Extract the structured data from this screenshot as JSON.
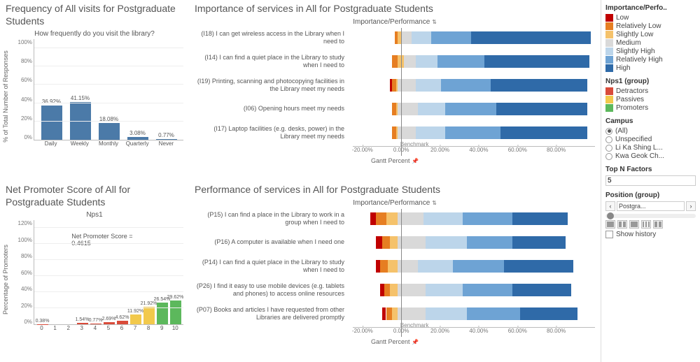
{
  "palette": {
    "low": "#c00000",
    "rel_low": "#e67e22",
    "slightly_low": "#f5c26b",
    "medium": "#d9d9d9",
    "slightly_high": "#bcd5ea",
    "rel_high": "#6ea3d4",
    "high": "#2f6aa8",
    "detractors": "#d94b3a",
    "passives": "#f2c94c",
    "promoters": "#5cb85c",
    "freq_bar": "#4b7aa8",
    "grid": "#e0e0e0",
    "axis": "#bbbbbb",
    "bg": "#ffffff"
  },
  "legend_importance": {
    "title": "Importance/Perfo..",
    "items": [
      "Low",
      "Relatively Low",
      "Slightly Low",
      "Medium",
      "Slightly High",
      "Relatively High",
      "High"
    ],
    "colors": [
      "#c00000",
      "#e67e22",
      "#f5c26b",
      "#d9d9d9",
      "#bcd5ea",
      "#6ea3d4",
      "#2f6aa8"
    ]
  },
  "legend_nps": {
    "title": "Nps1 (group)",
    "items": [
      "Detractors",
      "Passives",
      "Promoters"
    ],
    "colors": [
      "#d94b3a",
      "#f2c94c",
      "#5cb85c"
    ]
  },
  "campus": {
    "title": "Campus",
    "options": [
      "(All)",
      "Unspecified",
      "Li Ka Shing L...",
      "Kwa Geok Ch..."
    ],
    "selected_index": 0
  },
  "topn": {
    "title": "Top N Factors",
    "value": "5"
  },
  "position": {
    "title": "Position (group)",
    "value": "Postgra...",
    "show_history_label": "Show history"
  },
  "freq": {
    "title": "Frequency of All visits for Postgraduate Students",
    "subtitle": "How frequently do you visit the library?",
    "y_label": "% of Total Number of Responses",
    "y_max": 110,
    "y_ticks": [
      "0%",
      "20%",
      "40%",
      "60%",
      "80%",
      "100%"
    ],
    "categories": [
      "Daily",
      "Weekly",
      "Monthly",
      "Quarterly",
      "Never"
    ],
    "values": [
      36.92,
      41.15,
      18.08,
      3.08,
      0.77
    ],
    "value_labels": [
      "36.92%",
      "41.15%",
      "18.08%",
      "3.08%",
      "0.77%"
    ]
  },
  "nps": {
    "title": "Net Promoter Score of All for Postgraduate Students",
    "subtitle": "Nps1",
    "y_label": "Percentage of Promoters",
    "note": "Net Promoter Score = 0.4615",
    "y_max": 130,
    "y_ticks": [
      "0%",
      "20%",
      "40%",
      "60%",
      "80%",
      "100%",
      "120%"
    ],
    "categories": [
      "0",
      "1",
      "2",
      "3",
      "4",
      "5",
      "6",
      "7",
      "8",
      "9",
      "10"
    ],
    "values": [
      0.38,
      0,
      0,
      1.54,
      0.77,
      2.69,
      4.62,
      11.92,
      21.92,
      26.54,
      29.62
    ],
    "value_labels": [
      "0.38%",
      "",
      "",
      "1.54%",
      "0.77%",
      "2.69%",
      "4.62%",
      "11.92%",
      "21.92%",
      "26.54%",
      "29.62%"
    ],
    "bar_colors": [
      "#d94b3a",
      "#d94b3a",
      "#d94b3a",
      "#d94b3a",
      "#d94b3a",
      "#d94b3a",
      "#d94b3a",
      "#f2c94c",
      "#f2c94c",
      "#5cb85c",
      "#5cb85c"
    ]
  },
  "importance": {
    "title": "Importance of services in All for Postgraduate Students",
    "header": "Importance/Performance",
    "x_label": "Gantt Percent",
    "x_min": -25,
    "x_max": 100,
    "x_ticks": [
      -20,
      0,
      20,
      40,
      60,
      80
    ],
    "x_tick_labels": [
      "-20.00%",
      "0.00%",
      "20.00%",
      "40.00%",
      "60.00%",
      "80.00%"
    ],
    "benchmark_label": "Benchmark",
    "rows": [
      {
        "label": "(I18) I can get wireless access in the Library when I need to",
        "segs": [
          {
            "c": "#e67e22",
            "a": -1.5,
            "b": 0
          },
          {
            "c": "#f5c26b",
            "a": 0,
            "b": 2
          },
          {
            "c": "#d9d9d9",
            "a": 2,
            "b": 7
          },
          {
            "c": "#bcd5ea",
            "a": 7,
            "b": 17
          },
          {
            "c": "#6ea3d4",
            "a": 17,
            "b": 37
          },
          {
            "c": "#2f6aa8",
            "a": 37,
            "b": 98
          }
        ]
      },
      {
        "label": "(I14) I can find a quiet place in the Library to study when I need to",
        "segs": [
          {
            "c": "#e67e22",
            "a": -3,
            "b": 0
          },
          {
            "c": "#f5c26b",
            "a": 0,
            "b": 3
          },
          {
            "c": "#d9d9d9",
            "a": 3,
            "b": 9
          },
          {
            "c": "#bcd5ea",
            "a": 9,
            "b": 20
          },
          {
            "c": "#6ea3d4",
            "a": 20,
            "b": 44
          },
          {
            "c": "#2f6aa8",
            "a": 44,
            "b": 97
          }
        ]
      },
      {
        "label": "(I19) Printing, scanning and photocopying facilities in the Library meet my needs",
        "segs": [
          {
            "c": "#c00000",
            "a": -4,
            "b": -3
          },
          {
            "c": "#e67e22",
            "a": -3,
            "b": -1
          },
          {
            "c": "#f5c26b",
            "a": -1,
            "b": 0
          },
          {
            "c": "#d9d9d9",
            "a": 0,
            "b": 9
          },
          {
            "c": "#bcd5ea",
            "a": 9,
            "b": 22
          },
          {
            "c": "#6ea3d4",
            "a": 22,
            "b": 47
          },
          {
            "c": "#2f6aa8",
            "a": 47,
            "b": 96
          }
        ]
      },
      {
        "label": "(I06) Opening hours meet my needs",
        "segs": [
          {
            "c": "#e67e22",
            "a": -3,
            "b": -1
          },
          {
            "c": "#f5c26b",
            "a": -1,
            "b": 0
          },
          {
            "c": "#d9d9d9",
            "a": 0,
            "b": 10
          },
          {
            "c": "#bcd5ea",
            "a": 10,
            "b": 24
          },
          {
            "c": "#6ea3d4",
            "a": 24,
            "b": 50
          },
          {
            "c": "#2f6aa8",
            "a": 50,
            "b": 96
          }
        ]
      },
      {
        "label": "(I17) Laptop facilities (e.g. desks, power) in the Library meet my needs",
        "segs": [
          {
            "c": "#e67e22",
            "a": -3,
            "b": -1
          },
          {
            "c": "#f5c26b",
            "a": -1,
            "b": 0
          },
          {
            "c": "#d9d9d9",
            "a": 0,
            "b": 9
          },
          {
            "c": "#bcd5ea",
            "a": 9,
            "b": 24
          },
          {
            "c": "#6ea3d4",
            "a": 24,
            "b": 52
          },
          {
            "c": "#2f6aa8",
            "a": 52,
            "b": 96
          }
        ]
      }
    ]
  },
  "performance": {
    "title": "Performance of services in All for Postgraduate Students",
    "header": "Importance/Performance",
    "x_label": "Gantt Percent",
    "x_min": -25,
    "x_max": 100,
    "x_ticks": [
      -20,
      0,
      20,
      40,
      60,
      80
    ],
    "x_tick_labels": [
      "-20.00%",
      "0.00%",
      "20.00%",
      "40.00%",
      "60.00%",
      "80.00%"
    ],
    "benchmark_label": "Benchmark",
    "rows": [
      {
        "label": "(P15) I can find a place in the Library to work in a group when I need to",
        "segs": [
          {
            "c": "#c00000",
            "a": -14,
            "b": -11
          },
          {
            "c": "#e67e22",
            "a": -11,
            "b": -6
          },
          {
            "c": "#f5c26b",
            "a": -6,
            "b": 0
          },
          {
            "c": "#d9d9d9",
            "a": 0,
            "b": 13
          },
          {
            "c": "#bcd5ea",
            "a": 13,
            "b": 33
          },
          {
            "c": "#6ea3d4",
            "a": 33,
            "b": 58
          },
          {
            "c": "#2f6aa8",
            "a": 58,
            "b": 86
          }
        ]
      },
      {
        "label": "(P16) A computer is available when I need one",
        "segs": [
          {
            "c": "#c00000",
            "a": -11,
            "b": -8
          },
          {
            "c": "#e67e22",
            "a": -8,
            "b": -4
          },
          {
            "c": "#f5c26b",
            "a": -4,
            "b": 0
          },
          {
            "c": "#d9d9d9",
            "a": 0,
            "b": 14
          },
          {
            "c": "#bcd5ea",
            "a": 14,
            "b": 35
          },
          {
            "c": "#6ea3d4",
            "a": 35,
            "b": 58
          },
          {
            "c": "#2f6aa8",
            "a": 58,
            "b": 85
          }
        ]
      },
      {
        "label": "(P14) I can find a quiet place in the Library to study when I need to",
        "segs": [
          {
            "c": "#c00000",
            "a": -11,
            "b": -9
          },
          {
            "c": "#e67e22",
            "a": -9,
            "b": -5
          },
          {
            "c": "#f5c26b",
            "a": -5,
            "b": 0
          },
          {
            "c": "#d9d9d9",
            "a": 0,
            "b": 10
          },
          {
            "c": "#bcd5ea",
            "a": 10,
            "b": 28
          },
          {
            "c": "#6ea3d4",
            "a": 28,
            "b": 54
          },
          {
            "c": "#2f6aa8",
            "a": 54,
            "b": 89
          }
        ]
      },
      {
        "label": "(P26) I find it easy to use mobile devices (e.g. tablets and phones) to access online resources",
        "segs": [
          {
            "c": "#c00000",
            "a": -9,
            "b": -7
          },
          {
            "c": "#e67e22",
            "a": -7,
            "b": -4
          },
          {
            "c": "#f5c26b",
            "a": -4,
            "b": 0
          },
          {
            "c": "#d9d9d9",
            "a": 0,
            "b": 14
          },
          {
            "c": "#bcd5ea",
            "a": 14,
            "b": 33
          },
          {
            "c": "#6ea3d4",
            "a": 33,
            "b": 58
          },
          {
            "c": "#2f6aa8",
            "a": 58,
            "b": 88
          }
        ]
      },
      {
        "label": "(P07) Books and articles I have requested from other Libraries are delivered promptly",
        "segs": [
          {
            "c": "#c00000",
            "a": -8,
            "b": -6
          },
          {
            "c": "#e67e22",
            "a": -6,
            "b": -3
          },
          {
            "c": "#f5c26b",
            "a": -3,
            "b": 0
          },
          {
            "c": "#d9d9d9",
            "a": 0,
            "b": 14
          },
          {
            "c": "#bcd5ea",
            "a": 14,
            "b": 35
          },
          {
            "c": "#6ea3d4",
            "a": 35,
            "b": 62
          },
          {
            "c": "#2f6aa8",
            "a": 62,
            "b": 91
          }
        ]
      }
    ]
  }
}
